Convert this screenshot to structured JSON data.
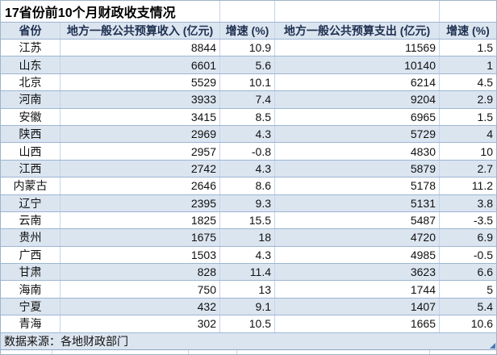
{
  "title": "17省份前10个月财政收支情况",
  "table": {
    "columns": [
      {
        "key": "province",
        "label": "省份"
      },
      {
        "key": "revenue",
        "label": "地方一般公共预算收入 (亿元)"
      },
      {
        "key": "revenue_growth",
        "label": "增速 (%)"
      },
      {
        "key": "expenditure",
        "label": "地方一般公共预算支出 (亿元)"
      },
      {
        "key": "expenditure_growth",
        "label": "增速 (%)"
      }
    ],
    "rows": [
      {
        "province": "江苏",
        "revenue": "8844",
        "revenue_growth": "10.9",
        "expenditure": "11569",
        "expenditure_growth": "1.5"
      },
      {
        "province": "山东",
        "revenue": "6601",
        "revenue_growth": "5.6",
        "expenditure": "10140",
        "expenditure_growth": "1"
      },
      {
        "province": "北京",
        "revenue": "5529",
        "revenue_growth": "10.1",
        "expenditure": "6214",
        "expenditure_growth": "4.5"
      },
      {
        "province": "河南",
        "revenue": "3933",
        "revenue_growth": "7.4",
        "expenditure": "9204",
        "expenditure_growth": "2.9"
      },
      {
        "province": "安徽",
        "revenue": "3415",
        "revenue_growth": "8.5",
        "expenditure": "6965",
        "expenditure_growth": "1.5"
      },
      {
        "province": "陕西",
        "revenue": "2969",
        "revenue_growth": "4.3",
        "expenditure": "5729",
        "expenditure_growth": "4"
      },
      {
        "province": "山西",
        "revenue": "2957",
        "revenue_growth": "-0.8",
        "expenditure": "4830",
        "expenditure_growth": "10"
      },
      {
        "province": "江西",
        "revenue": "2742",
        "revenue_growth": "4.3",
        "expenditure": "5879",
        "expenditure_growth": "2.7"
      },
      {
        "province": "内蒙古",
        "revenue": "2646",
        "revenue_growth": "8.6",
        "expenditure": "5178",
        "expenditure_growth": "11.2"
      },
      {
        "province": "辽宁",
        "revenue": "2395",
        "revenue_growth": "9.3",
        "expenditure": "5131",
        "expenditure_growth": "3.8"
      },
      {
        "province": "云南",
        "revenue": "1825",
        "revenue_growth": "15.5",
        "expenditure": "5487",
        "expenditure_growth": "-3.5"
      },
      {
        "province": "贵州",
        "revenue": "1675",
        "revenue_growth": "18",
        "expenditure": "4720",
        "expenditure_growth": "6.9"
      },
      {
        "province": "广西",
        "revenue": "1503",
        "revenue_growth": "4.3",
        "expenditure": "4985",
        "expenditure_growth": "-0.5"
      },
      {
        "province": "甘肃",
        "revenue": "828",
        "revenue_growth": "11.4",
        "expenditure": "3623",
        "expenditure_growth": "6.6"
      },
      {
        "province": "海南",
        "revenue": "750",
        "revenue_growth": "13",
        "expenditure": "1744",
        "expenditure_growth": "5"
      },
      {
        "province": "宁夏",
        "revenue": "432",
        "revenue_growth": "9.1",
        "expenditure": "1407",
        "expenditure_growth": "5.4"
      },
      {
        "province": "青海",
        "revenue": "302",
        "revenue_growth": "10.5",
        "expenditure": "1665",
        "expenditure_growth": "10.6"
      }
    ]
  },
  "footer": {
    "source_label": "数据来源：各地财政部门"
  },
  "colors": {
    "row_alt": "#dbe5f0",
    "horizontal_border": "#9db5d3",
    "vertical_border": "#c5d4e8",
    "outer_border": "#9fb3c8",
    "footer_border": "#8ba6c5",
    "corner_triangle": "#4a7ab2",
    "header_text": "#1f3050",
    "data_text": "#111111"
  }
}
